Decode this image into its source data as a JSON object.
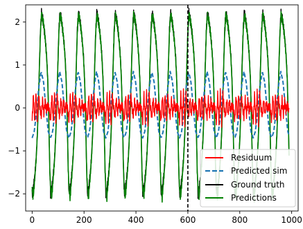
{
  "chart_data": {
    "type": "line",
    "title": "",
    "xlabel": "",
    "ylabel": "",
    "xlim": [
      -25,
      1025
    ],
    "ylim": [
      -2.4,
      2.4
    ],
    "x_ticks": [
      0,
      200,
      400,
      600,
      800,
      1000
    ],
    "x_tick_labels": [
      "0",
      "200",
      "400",
      "600",
      "800",
      "1000"
    ],
    "y_ticks": [
      -2,
      -1,
      0,
      1,
      2
    ],
    "y_tick_labels": [
      "−2",
      "−1",
      "0",
      "1",
      "2"
    ],
    "grid": false,
    "legend_position": "lower right",
    "vline": {
      "x": 600,
      "style": "dashed",
      "color": "#000000"
    },
    "period": 71,
    "series": [
      {
        "name": "Residuum",
        "color": "#ff0000",
        "style": "solid",
        "x": [
          0,
          5,
          10,
          15,
          20,
          25,
          30,
          35,
          40,
          45,
          50,
          55,
          60,
          65,
          70
        ],
        "values": [
          -0.3,
          0.3,
          -0.3,
          0.35,
          -0.35,
          0.3,
          0.0,
          -0.2,
          0.2,
          -0.15,
          0.15,
          -0.05,
          0.05,
          0.0,
          -0.25
        ]
      },
      {
        "name": "Predicted sim",
        "color": "#1f77b4",
        "style": "dashed",
        "x": [
          0,
          8,
          17,
          26,
          35,
          44,
          53,
          62,
          71
        ],
        "values": [
          -0.7,
          -0.55,
          -0.1,
          0.5,
          0.85,
          0.6,
          0.0,
          -0.55,
          -0.7
        ]
      },
      {
        "name": "Ground truth",
        "color": "#000000",
        "style": "solid",
        "x": [
          0,
          4,
          8,
          12,
          16,
          20,
          24,
          28,
          32,
          36,
          40,
          44,
          48,
          52,
          56,
          60,
          64,
          68,
          71
        ],
        "values": [
          -2.0,
          -1.9,
          -1.7,
          -1.45,
          -1.1,
          -0.6,
          0.1,
          1.0,
          1.8,
          2.2,
          2.1,
          1.95,
          1.75,
          1.5,
          1.2,
          0.7,
          -0.2,
          -1.4,
          -2.0
        ]
      },
      {
        "name": "Predictions",
        "color": "#008000",
        "style": "solid",
        "x": [
          0,
          4,
          8,
          12,
          16,
          20,
          24,
          28,
          32,
          36,
          40,
          44,
          48,
          52,
          56,
          60,
          64,
          68,
          71
        ],
        "values": [
          -1.85,
          -2.1,
          -1.8,
          -1.5,
          -1.15,
          -0.65,
          0.05,
          0.95,
          1.75,
          2.15,
          2.1,
          1.95,
          1.75,
          1.5,
          1.15,
          0.65,
          -0.25,
          -1.45,
          -1.85
        ]
      }
    ]
  }
}
